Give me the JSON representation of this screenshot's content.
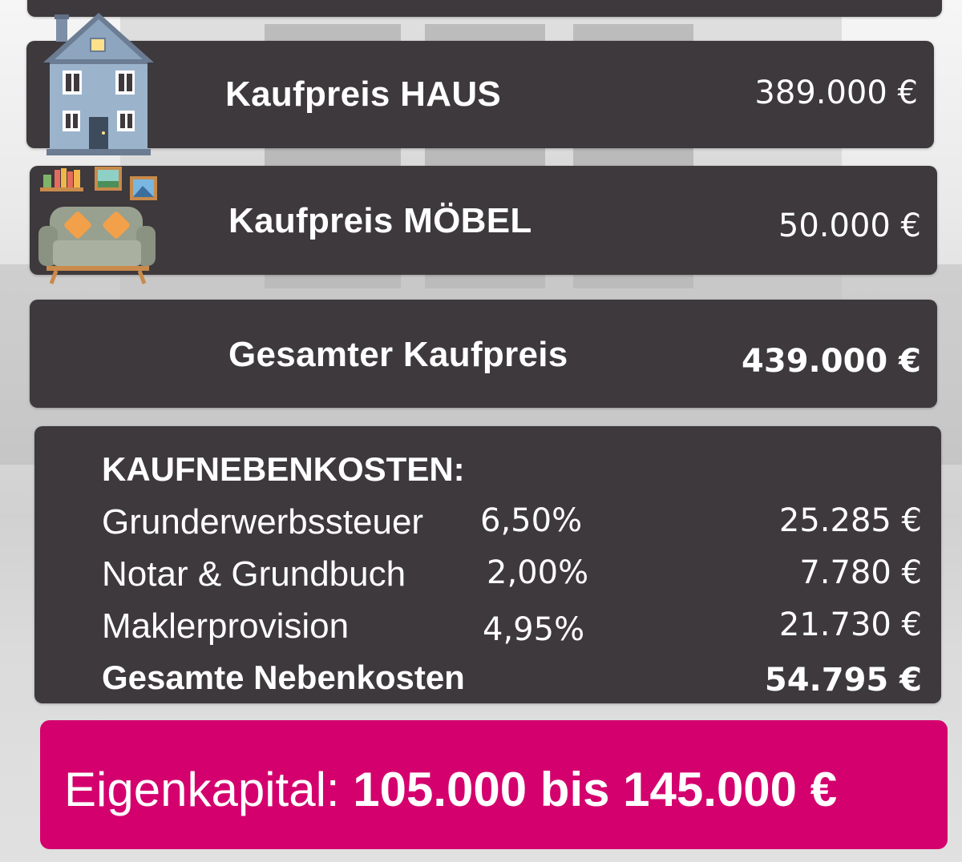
{
  "rows": {
    "haus": {
      "label": "Kaufpreis HAUS",
      "value": "389.000 €"
    },
    "moebel": {
      "label": "Kaufpreis MÖBEL",
      "value": "50.000 €"
    },
    "gesamt": {
      "label": "Gesamter Kaufpreis",
      "value": "439.000 €"
    }
  },
  "nebenkosten": {
    "heading": "KAUFNEBENKOSTEN:",
    "items": [
      {
        "name": "Grunderwerbssteuer",
        "percent": "6,50%",
        "amount": "25.285 €"
      },
      {
        "name": "Notar & Grundbuch",
        "percent": "2,00%",
        "amount": "7.780 €"
      },
      {
        "name": "Maklerprovision",
        "percent": "4,95%",
        "amount": "21.730 €"
      }
    ],
    "total_label": "Gesamte Nebenkosten",
    "total_value": "54.795 €"
  },
  "eigenkapital": {
    "label": "Eigenkapital:",
    "value": "105.000 bis 145.000 €"
  },
  "colors": {
    "card": "#3d393c",
    "accent": "#d4006e",
    "text": "#ffffff"
  },
  "icons": [
    "house-icon",
    "sofa-icon"
  ]
}
